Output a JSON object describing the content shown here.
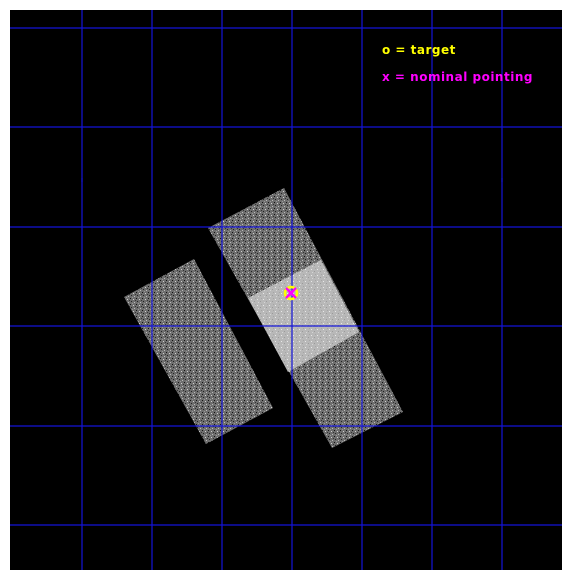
{
  "legend": {
    "target_text": "o = target",
    "pointing_text": "x = nominal pointing",
    "target_color": "#ffff00",
    "pointing_color": "#ff00ff"
  },
  "colors": {
    "background": "#000000",
    "grid": "#1010d0",
    "chip_dim": "#7a7a7a",
    "chip_bright": "#bdbdbd"
  },
  "markers": {
    "target_symbol": "o",
    "pointing_symbol": "x"
  }
}
